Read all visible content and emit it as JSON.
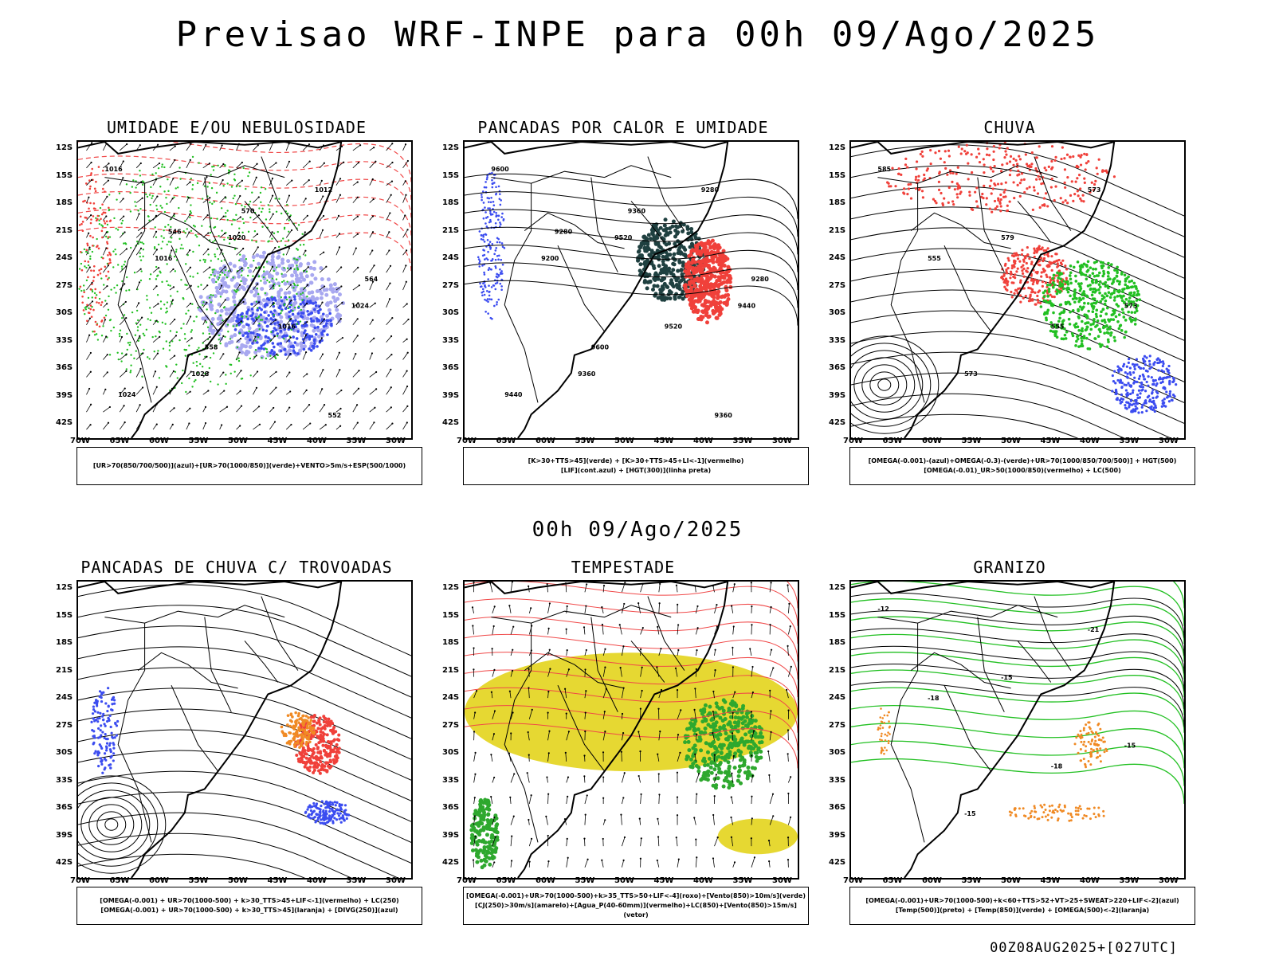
{
  "header": {
    "title": "Previsao WRF-INPE  para 00h 09/Ago/2025",
    "mid_title": "00h 09/Ago/2025",
    "footer": "00Z08AUG2025+[027UTC]"
  },
  "axes": {
    "lat_labels": [
      "12S",
      "15S",
      "18S",
      "21S",
      "24S",
      "27S",
      "30S",
      "33S",
      "36S",
      "39S",
      "42S"
    ],
    "lon_labels": [
      "70W",
      "65W",
      "60W",
      "55W",
      "50W",
      "45W",
      "40W",
      "35W",
      "30W"
    ]
  },
  "panels": [
    {
      "title": "UMIDADE E/OU NEBULOSIDADE",
      "legend_lines": [
        "[UR>70(850/700/500)](azul)+[UR>70(1000/850)](verde)+VENTO>5m/s+ESP(500/1000)"
      ],
      "labels": [
        "1016",
        "1020",
        "1024",
        "1028",
        "1012",
        "1016",
        "1016",
        "1024",
        "570",
        "564",
        "558",
        "552",
        "546"
      ]
    },
    {
      "title": "PANCADAS POR CALOR E UMIDADE",
      "legend_lines": [
        "[K>30+TTS>45](verde) + [K>30+TTS>45+LI<-1](vermelho)",
        "[LIF](cont.azul) + [HGT(300)](linha preta)"
      ],
      "labels": [
        "9600",
        "9520",
        "9440",
        "9360",
        "9280",
        "9200",
        "9520",
        "9440",
        "9360",
        "9280",
        "9600",
        "9360",
        "9280"
      ]
    },
    {
      "title": "CHUVA",
      "legend_lines": [
        "[OMEGA(-0.001)-(azul)+OMEGA(-0.3)-(verde)+UR>70(1000/850/700/500)] + HGT(500)",
        "[OMEGA(-0.01)_UR>50(1000/850)(vermelho) + LC(500)"
      ],
      "labels": [
        "585",
        "579",
        "573",
        "573",
        "573",
        "555",
        "555"
      ]
    },
    {
      "title": "PANCADAS DE CHUVA C/ TROVOADAS",
      "legend_lines": [
        "[OMEGA(-0.001) + UR>70(1000-500) + k>30_TTS>45+LIF<-1](vermelho) + LC(250)",
        "[OMEGA(-0.001) + UR>70(1000-500) + k>30_TTS>45](laranja) + [DIVG(250)](azul)"
      ],
      "labels": []
    },
    {
      "title": "TEMPESTADE",
      "legend_lines": [
        "[OMEGA(-0.001)+UR>70(1000-500)+k>35_TTS>50+LIF<-4](roxo)+[Vento(850)>10m/s](verde)",
        "[CJ(250)>30m/s](amarelo)+[Agua_P(40-60mm)](vermelho)+LC(850)+[Vento(850)>15m/s](vetor)"
      ],
      "labels": []
    },
    {
      "title": "GRANIZO",
      "legend_lines": [
        "[OMEGA(-0.001)+UR>70(1000-500)+k<60+TTS>52+VT>25+SWEAT>220+LIF<-2](azul)",
        "[Temp(500)](preto) + [Temp(850)](verde) + [OMEGA(500)<-2](laranja)"
      ],
      "labels": [
        "-12",
        "-15",
        "-15",
        "-15",
        "-21",
        "-18",
        "-18"
      ]
    }
  ],
  "colors": {
    "coast": "#000000",
    "humid_low": "#22c022",
    "humid_high": "#3b4cf0",
    "rain_red": "#f0403a",
    "orange": "#f08a24",
    "yellow": "#e6d832",
    "dark_green": "#1f4040",
    "thickness": "#f04848"
  }
}
